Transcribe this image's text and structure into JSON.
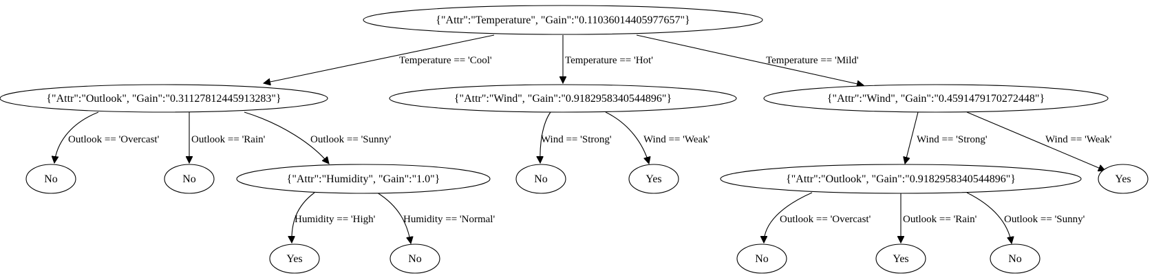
{
  "tree": {
    "nodes": [
      {
        "id": "root",
        "label": "{\"Attr\":\"Temperature\", \"Gain\":\"0.11036014405977657\"}"
      },
      {
        "id": "cool",
        "label": "{\"Attr\":\"Outlook\", \"Gain\":\"0.31127812445913283\"}"
      },
      {
        "id": "hot",
        "label": "{\"Attr\":\"Wind\", \"Gain\":\"0.9182958340544896\"}"
      },
      {
        "id": "mild",
        "label": "{\"Attr\":\"Wind\", \"Gain\":\"0.4591479170272448\"}"
      },
      {
        "id": "c_overcast",
        "label": "No"
      },
      {
        "id": "c_rain",
        "label": "No"
      },
      {
        "id": "c_sunny",
        "label": "{\"Attr\":\"Humidity\", \"Gain\":\"1.0\"}"
      },
      {
        "id": "h_strong",
        "label": "No"
      },
      {
        "id": "h_weak",
        "label": "Yes"
      },
      {
        "id": "m_strong",
        "label": "{\"Attr\":\"Outlook\", \"Gain\":\"0.9182958340544896\"}"
      },
      {
        "id": "m_weak",
        "label": "Yes"
      },
      {
        "id": "hum_high",
        "label": "Yes"
      },
      {
        "id": "hum_normal",
        "label": "No"
      },
      {
        "id": "ms_overcast",
        "label": "No"
      },
      {
        "id": "ms_rain",
        "label": "Yes"
      },
      {
        "id": "ms_sunny",
        "label": "No"
      }
    ],
    "edges": [
      {
        "from": "root",
        "to": "cool",
        "label": "Temperature == 'Cool'"
      },
      {
        "from": "root",
        "to": "hot",
        "label": "Temperature == 'Hot'"
      },
      {
        "from": "root",
        "to": "mild",
        "label": "Temperature == 'Mild'"
      },
      {
        "from": "cool",
        "to": "c_overcast",
        "label": "Outlook == 'Overcast'"
      },
      {
        "from": "cool",
        "to": "c_rain",
        "label": "Outlook == 'Rain'"
      },
      {
        "from": "cool",
        "to": "c_sunny",
        "label": "Outlook == 'Sunny'"
      },
      {
        "from": "hot",
        "to": "h_strong",
        "label": "Wind == 'Strong'"
      },
      {
        "from": "hot",
        "to": "h_weak",
        "label": "Wind == 'Weak'"
      },
      {
        "from": "mild",
        "to": "m_strong",
        "label": "Wind == 'Strong'"
      },
      {
        "from": "mild",
        "to": "m_weak",
        "label": "Wind == 'Weak'"
      },
      {
        "from": "c_sunny",
        "to": "hum_high",
        "label": "Humidity == 'High'"
      },
      {
        "from": "c_sunny",
        "to": "hum_normal",
        "label": "Humidity == 'Normal'"
      },
      {
        "from": "m_strong",
        "to": "ms_overcast",
        "label": "Outlook == 'Overcast'"
      },
      {
        "from": "m_strong",
        "to": "ms_rain",
        "label": "Outlook == 'Rain'"
      },
      {
        "from": "m_strong",
        "to": "ms_sunny",
        "label": "Outlook == 'Sunny'"
      }
    ]
  }
}
